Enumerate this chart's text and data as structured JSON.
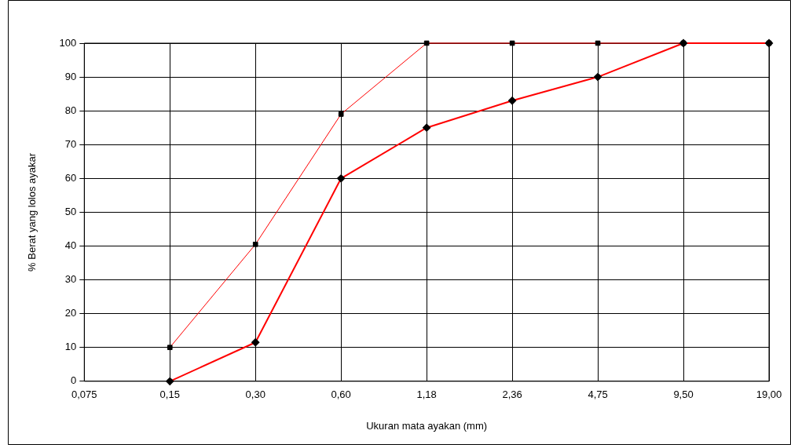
{
  "chart_data": {
    "type": "line",
    "xlabel": "Ukuran mata ayakan (mm)",
    "ylabel": "% Berat yang lolos ayakar",
    "categories": [
      "0,075",
      "0,15",
      "0,30",
      "0,60",
      "1,18",
      "2,36",
      "4,75",
      "9,50",
      "19,00"
    ],
    "series": [
      {
        "color": "#ff0000",
        "marker": "square",
        "values": [
          null,
          10,
          40.5,
          79,
          100,
          100,
          100,
          100,
          100
        ]
      },
      {
        "color": "#ff0000",
        "marker": "diamond",
        "values": [
          null,
          0,
          11.5,
          60,
          75,
          83,
          90,
          100,
          100
        ]
      }
    ],
    "ylim": [
      0,
      100
    ],
    "yticks": [
      0,
      10,
      20,
      30,
      40,
      50,
      60,
      70,
      80,
      90,
      100
    ],
    "grid": true,
    "legend": false
  }
}
